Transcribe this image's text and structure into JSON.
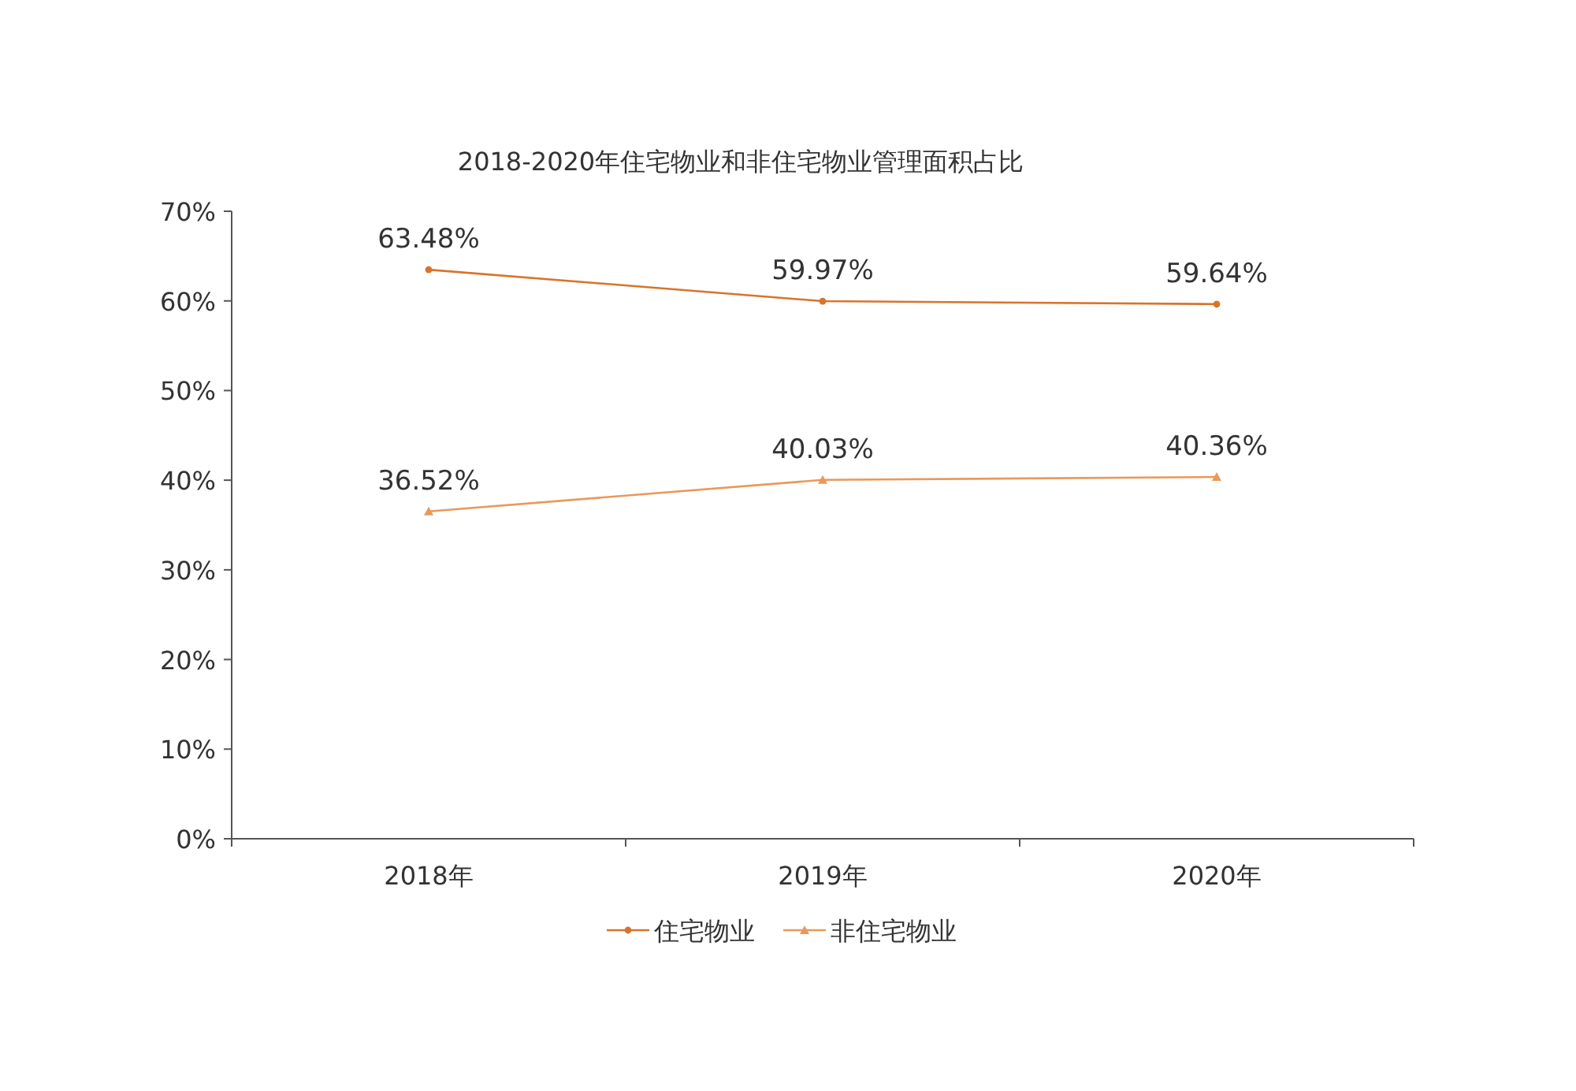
{
  "chart_data": {
    "type": "line",
    "title": "2018-2020年住宅物业和非住宅物业管理面积占比",
    "categories": [
      "2018年",
      "2019年",
      "2020年"
    ],
    "series": [
      {
        "name": "住宅物业",
        "color": "#d8742a",
        "marker": "circle",
        "values": [
          63.48,
          59.97,
          59.64
        ],
        "value_labels": [
          "63.48%",
          "59.97%",
          "59.64%"
        ]
      },
      {
        "name": "非住宅物业",
        "color": "#e9995a",
        "marker": "triangle",
        "values": [
          36.52,
          40.03,
          40.36
        ],
        "value_labels": [
          "36.52%",
          "40.03%",
          "40.36%"
        ]
      }
    ],
    "ylim": [
      0,
      70
    ],
    "yticks": [
      {
        "value": 0,
        "label": "0%"
      },
      {
        "value": 10,
        "label": "10%"
      },
      {
        "value": 20,
        "label": "20%"
      },
      {
        "value": 30,
        "label": "30%"
      },
      {
        "value": 40,
        "label": "40%"
      },
      {
        "value": 50,
        "label": "50%"
      },
      {
        "value": 60,
        "label": "60%"
      },
      {
        "value": 70,
        "label": "70%"
      }
    ],
    "legend": "bottom",
    "grid": false
  }
}
